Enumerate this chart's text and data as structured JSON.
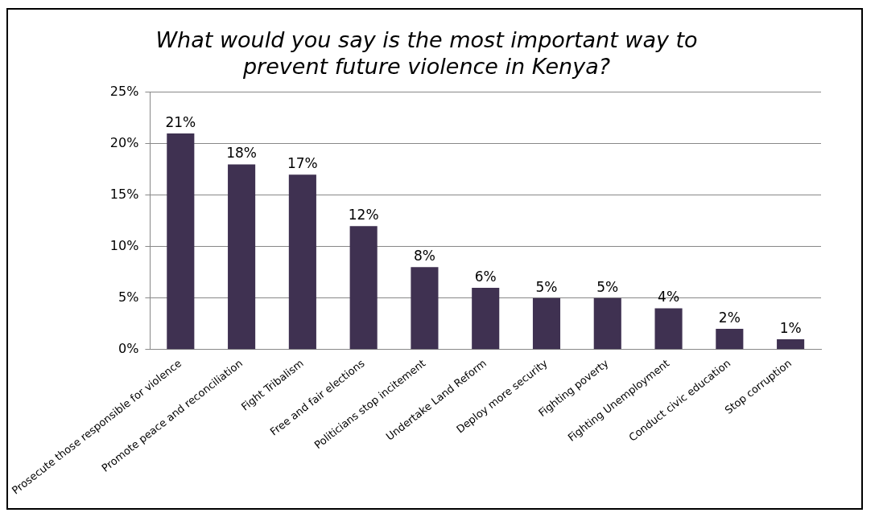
{
  "chart_data": {
    "type": "bar",
    "title": [
      "What would you say is the most important way to",
      "prevent future violence in Kenya?"
    ],
    "categories": [
      "Prosecute those responsible for violence",
      "Promote peace and reconciliation",
      "Fight Tribalism",
      "Free and fair elections",
      "Politicians stop incitement",
      "Undertake Land Reform",
      "Deploy more security",
      "Fighting poverty",
      "Fighting Unemployment",
      "Conduct civic education",
      "Stop corruption"
    ],
    "values": [
      21,
      18,
      17,
      12,
      8,
      6,
      5,
      5,
      4,
      2,
      1
    ],
    "color": "#3f3151",
    "ylim": [
      0,
      25
    ],
    "yticks": [
      {
        "value": 0,
        "label": "0%"
      },
      {
        "value": 5,
        "label": "5%"
      },
      {
        "value": 10,
        "label": "10%"
      },
      {
        "value": 15,
        "label": "15%"
      },
      {
        "value": 20,
        "label": "20%"
      },
      {
        "value": 25,
        "label": "25%"
      }
    ],
    "value_labels": [
      "21%",
      "18%",
      "17%",
      "12%",
      "8%",
      "6%",
      "5%",
      "5%",
      "4%",
      "2%",
      "1%"
    ],
    "grid": "y"
  }
}
